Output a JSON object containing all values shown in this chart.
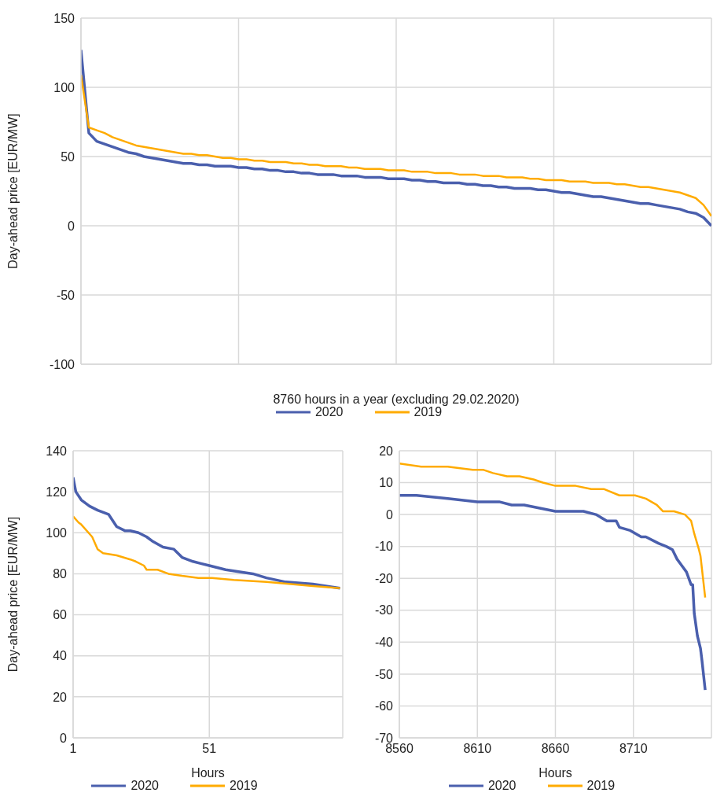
{
  "chart_data": [
    {
      "type": "line",
      "xlabel": "8760 hours in a year (excluding 29.02.2020)",
      "ylabel": "Day-ahead price [EUR/MW]",
      "categories": [
        null,
        null,
        null,
        null,
        null,
        null,
        null,
        null,
        null,
        null,
        null,
        null,
        null,
        null,
        null,
        null,
        null,
        null,
        null,
        null,
        null,
        null,
        null,
        null,
        null,
        null,
        null,
        null,
        null,
        null,
        null,
        null,
        null,
        null,
        null,
        null,
        null,
        null,
        null,
        null,
        null,
        null,
        null,
        null,
        null,
        null,
        null,
        null,
        null,
        null,
        null,
        null,
        null,
        null,
        null,
        null,
        null,
        null,
        null,
        null,
        null,
        null,
        null,
        null,
        null,
        null,
        null,
        null,
        null,
        null,
        null,
        null,
        null,
        null,
        null,
        null,
        null,
        null,
        null,
        null,
        null
      ],
      "ylim": [
        -100,
        150
      ],
      "yticks": [
        -100,
        -50,
        0,
        50,
        100,
        150
      ],
      "grid": true,
      "legend": "bottom",
      "series": [
        {
          "name": "2020",
          "color": "#4a5fad",
          "values": [
            127,
            67,
            61,
            59,
            57,
            55,
            53,
            52,
            50,
            49,
            48,
            47,
            46,
            45,
            45,
            44,
            44,
            43,
            43,
            43,
            42,
            42,
            41,
            41,
            40,
            40,
            39,
            39,
            38,
            38,
            37,
            37,
            37,
            36,
            36,
            36,
            35,
            35,
            35,
            34,
            34,
            34,
            33,
            33,
            32,
            32,
            31,
            31,
            31,
            30,
            30,
            29,
            29,
            28,
            28,
            27,
            27,
            27,
            26,
            26,
            25,
            24,
            24,
            23,
            22,
            21,
            21,
            20,
            19,
            18,
            17,
            16,
            16,
            15,
            14,
            13,
            12,
            10,
            9,
            6,
            0
          ]
        },
        {
          "name": "2019",
          "color": "#ffab00",
          "values": [
            109,
            71,
            69,
            67,
            64,
            62,
            60,
            58,
            57,
            56,
            55,
            54,
            53,
            52,
            52,
            51,
            51,
            50,
            49,
            49,
            48,
            48,
            47,
            47,
            46,
            46,
            46,
            45,
            45,
            44,
            44,
            43,
            43,
            43,
            42,
            42,
            41,
            41,
            41,
            40,
            40,
            40,
            39,
            39,
            39,
            38,
            38,
            38,
            37,
            37,
            37,
            36,
            36,
            36,
            35,
            35,
            35,
            34,
            34,
            33,
            33,
            33,
            32,
            32,
            32,
            31,
            31,
            31,
            30,
            30,
            29,
            28,
            28,
            27,
            26,
            25,
            24,
            22,
            20,
            15,
            7
          ]
        }
      ]
    },
    {
      "type": "line",
      "xlabel": "Hours",
      "ylabel": "Day-ahead price [EUR/MW]",
      "xlim": [
        1,
        100
      ],
      "xticks": [
        1,
        51
      ],
      "ylim": [
        0,
        140
      ],
      "yticks": [
        0,
        20,
        40,
        60,
        80,
        100,
        120,
        140
      ],
      "grid": true,
      "legend": "bottom",
      "series": [
        {
          "name": "2020",
          "color": "#4a5fad",
          "x": [
            1,
            2,
            4,
            7,
            10,
            14,
            17,
            20,
            22,
            25,
            28,
            30,
            34,
            38,
            41,
            45,
            51,
            57,
            67,
            72,
            79,
            89,
            99
          ],
          "values": [
            127,
            120,
            116,
            113,
            111,
            109,
            103,
            101,
            101,
            100,
            98,
            96,
            93,
            92,
            88,
            86,
            84,
            82,
            80,
            78,
            76,
            75,
            73
          ]
        },
        {
          "name": "2019",
          "color": "#ffab00",
          "x": [
            1,
            3,
            4,
            8,
            10,
            12,
            17,
            22,
            24,
            27,
            28,
            32,
            36,
            41,
            47,
            52,
            60,
            72,
            81,
            89,
            99
          ],
          "values": [
            108,
            105,
            104,
            98,
            92,
            90,
            89,
            87,
            86,
            84,
            82,
            82,
            80,
            79,
            78,
            78,
            77,
            76,
            75,
            74,
            73
          ]
        }
      ]
    },
    {
      "type": "line",
      "xlabel": "Hours",
      "xlim": [
        8560,
        8760
      ],
      "xticks": [
        8560,
        8610,
        8660,
        8710
      ],
      "ylim": [
        -70,
        20
      ],
      "yticks": [
        -70,
        -60,
        -50,
        -40,
        -30,
        -20,
        -10,
        0,
        10,
        20
      ],
      "grid": true,
      "legend": "bottom",
      "series": [
        {
          "name": "2020",
          "color": "#4a5fad",
          "x": [
            8560,
            8571,
            8591,
            8610,
            8624,
            8632,
            8640,
            8650,
            8660,
            8667,
            8678,
            8686,
            8693,
            8699,
            8701,
            8708,
            8715,
            8718,
            8726,
            8731,
            8735,
            8738,
            8741,
            8744,
            8747,
            8748,
            8749,
            8751,
            8753,
            8754,
            8756
          ],
          "values": [
            6,
            6,
            5,
            4,
            4,
            3,
            3,
            2,
            1,
            1,
            1,
            0,
            -2,
            -2,
            -4,
            -5,
            -7,
            -7,
            -9,
            -10,
            -11,
            -14,
            -16,
            -18,
            -22,
            -22,
            -31,
            -38,
            -42,
            -46,
            -55
          ]
        },
        {
          "name": "2019",
          "color": "#ffab00",
          "x": [
            8560,
            8574,
            8591,
            8607,
            8614,
            8620,
            8629,
            8637,
            8646,
            8652,
            8660,
            8662,
            8673,
            8683,
            8691,
            8701,
            8711,
            8718,
            8725,
            8729,
            8736,
            8743,
            8747,
            8749,
            8752,
            8753,
            8756
          ],
          "values": [
            16,
            15,
            15,
            14,
            14,
            13,
            12,
            12,
            11,
            10,
            9,
            9,
            9,
            8,
            8,
            6,
            6,
            5,
            3,
            1,
            1,
            0,
            -2,
            -6,
            -11,
            -13,
            -26
          ]
        }
      ]
    }
  ]
}
